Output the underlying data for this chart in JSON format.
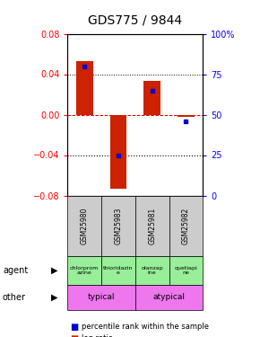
{
  "title": "GDS775 / 9844",
  "samples": [
    "GSM25980",
    "GSM25983",
    "GSM25981",
    "GSM25982"
  ],
  "log_ratios": [
    0.053,
    -0.073,
    0.033,
    -0.002
  ],
  "percentile_ranks": [
    80,
    25,
    65,
    46
  ],
  "ylim_left": [
    -0.08,
    0.08
  ],
  "ylim_right": [
    0,
    100
  ],
  "yticks_left": [
    -0.08,
    -0.04,
    0,
    0.04,
    0.08
  ],
  "yticks_right": [
    0,
    25,
    50,
    75,
    100
  ],
  "bar_color": "#cc2200",
  "dot_color": "#0000cc",
  "agents": [
    "chlorprom\nazine",
    "thioridazin\ne",
    "olanzap\nine",
    "quetiapi\nne"
  ],
  "agent_bg": "#99ee99",
  "other_labels": [
    [
      "typical",
      2
    ],
    [
      "atypical",
      2
    ]
  ],
  "other_bg": "#ee77ee",
  "sample_bg": "#cccccc",
  "zero_line_color": "#cc0000",
  "dotted_color": "#000000",
  "title_fontsize": 10,
  "tick_fontsize": 7,
  "label_fontsize": 7
}
